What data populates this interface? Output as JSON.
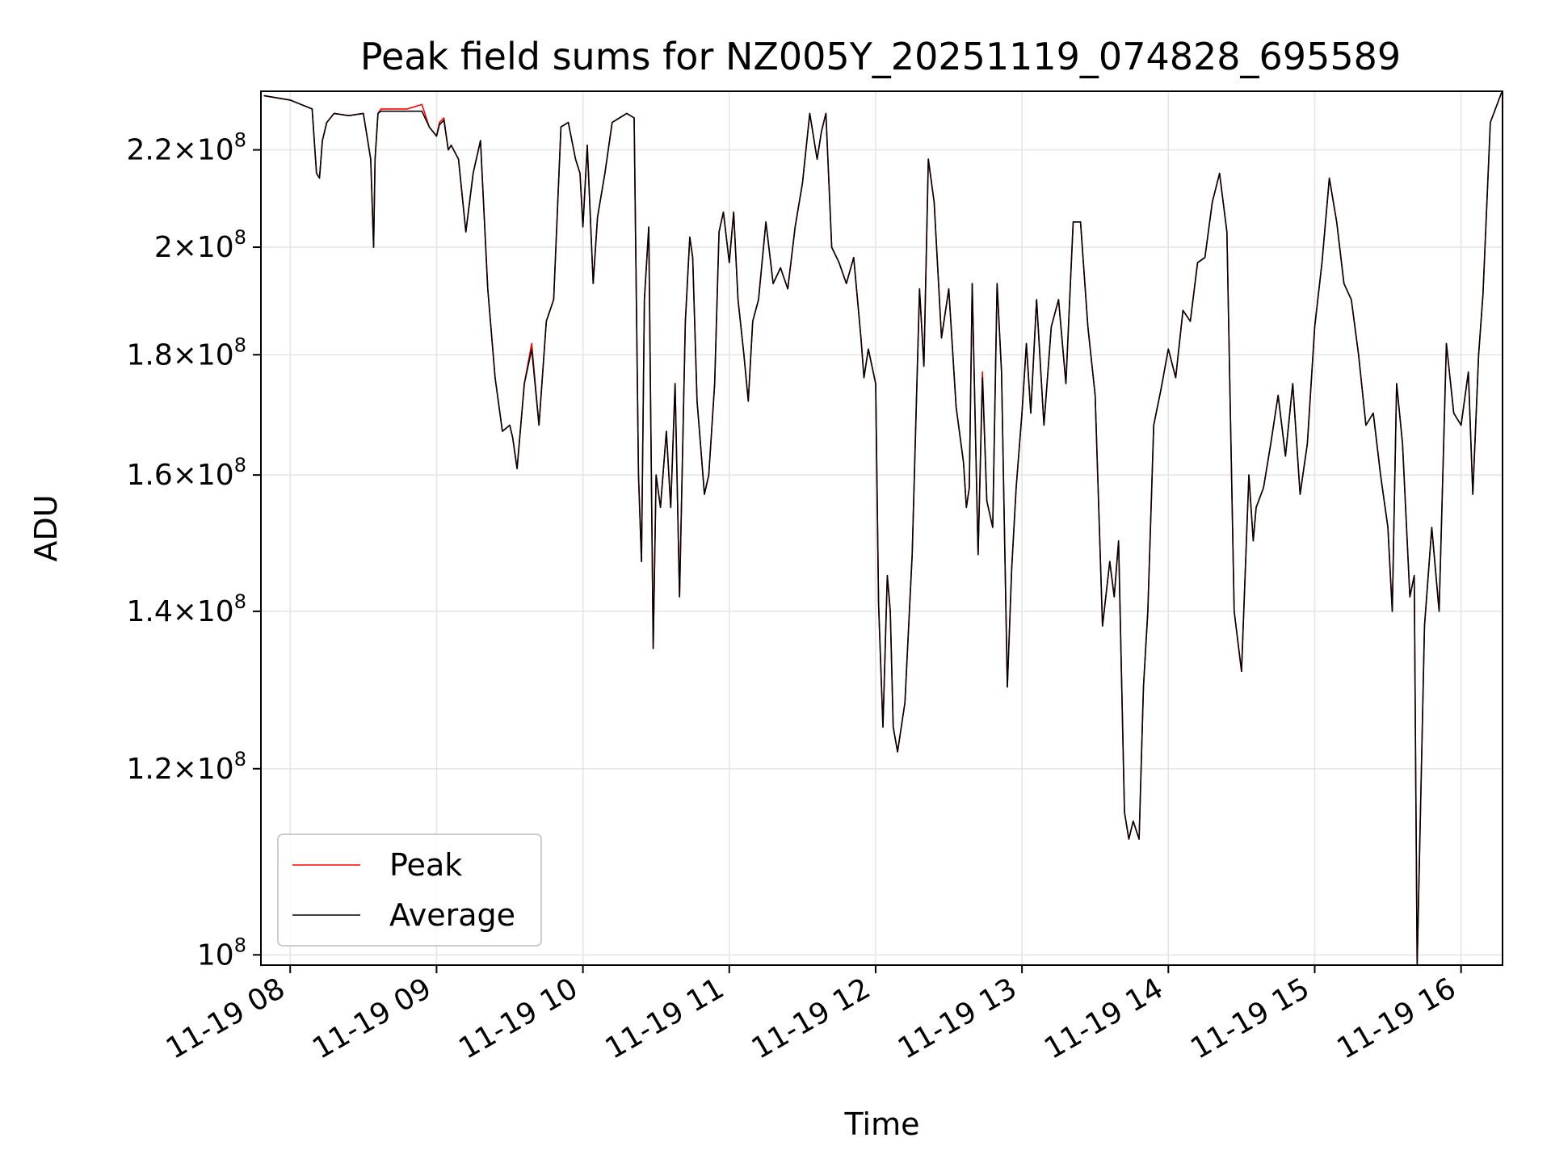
{
  "chart_data": {
    "type": "line",
    "title": "Peak field sums for NZ005Y_20251119_074828_695589",
    "xlabel": "Time",
    "ylabel": "ADU",
    "x_unit": "hours (clock time on 2025-11-19)",
    "xlim": [
      "11-19 07:48",
      "11-19 16:17"
    ],
    "ylim": [
      99000000,
      233000000
    ],
    "yscale": "log",
    "grid": true,
    "legend": "lower-left",
    "xticks": [
      {
        "v": 8,
        "label": "11-19 08"
      },
      {
        "v": 9,
        "label": "11-19 09"
      },
      {
        "v": 10,
        "label": "11-19 10"
      },
      {
        "v": 11,
        "label": "11-19 11"
      },
      {
        "v": 12,
        "label": "11-19 12"
      },
      {
        "v": 13,
        "label": "11-19 13"
      },
      {
        "v": 14,
        "label": "11-19 14"
      },
      {
        "v": 15,
        "label": "11-19 15"
      },
      {
        "v": 16,
        "label": "11-19 16"
      }
    ],
    "yticks": [
      {
        "v": 100000000,
        "mant": "",
        "exp": "8"
      },
      {
        "v": 120000000,
        "mant": "1.2",
        "exp": "8"
      },
      {
        "v": 140000000,
        "mant": "1.4",
        "exp": "8"
      },
      {
        "v": 160000000,
        "mant": "1.6",
        "exp": "8"
      },
      {
        "v": 180000000,
        "mant": "1.8",
        "exp": "8"
      },
      {
        "v": 200000000,
        "mant": "2",
        "exp": "8"
      },
      {
        "v": 220000000,
        "mant": "2.2",
        "exp": "8"
      }
    ],
    "series": [
      {
        "name": "Peak",
        "color": "#ff0000",
        "x": [
          7.82,
          8.0,
          8.15,
          8.18,
          8.2,
          8.22,
          8.25,
          8.3,
          8.4,
          8.5,
          8.55,
          8.57,
          8.58,
          8.6,
          8.62,
          8.65,
          8.7,
          8.8,
          8.9,
          8.95,
          9.0,
          9.02,
          9.05,
          9.08,
          9.1,
          9.15,
          9.2,
          9.25,
          9.3,
          9.35,
          9.4,
          9.45,
          9.5,
          9.52,
          9.55,
          9.6,
          9.65,
          9.7,
          9.75,
          9.8,
          9.85,
          9.9,
          9.95,
          9.98,
          10.0,
          10.03,
          10.07,
          10.1,
          10.15,
          10.2,
          10.3,
          10.35,
          10.38,
          10.4,
          10.42,
          10.45,
          10.48,
          10.5,
          10.53,
          10.57,
          10.6,
          10.63,
          10.66,
          10.7,
          10.73,
          10.75,
          10.78,
          10.8,
          10.83,
          10.86,
          10.9,
          10.93,
          10.96,
          11.0,
          11.03,
          11.06,
          11.1,
          11.13,
          11.16,
          11.2,
          11.25,
          11.3,
          11.35,
          11.4,
          11.45,
          11.5,
          11.55,
          11.6,
          11.63,
          11.66,
          11.7,
          11.75,
          11.8,
          11.85,
          11.9,
          11.92,
          11.95,
          12.0,
          12.02,
          12.05,
          12.08,
          12.1,
          12.12,
          12.15,
          12.2,
          12.25,
          12.3,
          12.33,
          12.36,
          12.4,
          12.45,
          12.5,
          12.55,
          12.6,
          12.62,
          12.64,
          12.66,
          12.7,
          12.73,
          12.76,
          12.8,
          12.83,
          12.86,
          12.9,
          12.93,
          12.96,
          13.0,
          13.03,
          13.06,
          13.1,
          13.15,
          13.2,
          13.25,
          13.3,
          13.35,
          13.4,
          13.45,
          13.5,
          13.55,
          13.6,
          13.63,
          13.66,
          13.7,
          13.73,
          13.76,
          13.8,
          13.83,
          13.86,
          13.9,
          13.95,
          14.0,
          14.05,
          14.1,
          14.15,
          14.2,
          14.25,
          14.3,
          14.35,
          14.4,
          14.45,
          14.5,
          14.55,
          14.58,
          14.6,
          14.65,
          14.7,
          14.75,
          14.8,
          14.85,
          14.9,
          14.95,
          15.0,
          15.05,
          15.1,
          15.15,
          15.2,
          15.25,
          15.3,
          15.35,
          15.4,
          15.45,
          15.5,
          15.53,
          15.56,
          15.6,
          15.65,
          15.68,
          15.7,
          15.75,
          15.8,
          15.85,
          15.9,
          15.95,
          16.0,
          16.05,
          16.08,
          16.12,
          16.15,
          16.2,
          16.28
        ],
        "values": [
          232000000,
          231000000,
          229000000,
          215000000,
          214000000,
          222000000,
          226000000,
          228000000,
          227500000,
          228000000,
          218000000,
          200000000,
          218000000,
          228000000,
          229000000,
          229000000,
          229000000,
          229000000,
          230000000,
          225000000,
          223000000,
          226000000,
          227000000,
          220000000,
          221000000,
          218000000,
          203000000,
          215000000,
          222000000,
          192000000,
          176000000,
          167000000,
          168000000,
          166000000,
          161000000,
          175000000,
          182000000,
          168000000,
          186000000,
          190000000,
          225000000,
          226000000,
          218000000,
          215000000,
          204000000,
          221000000,
          193000000,
          206000000,
          215000000,
          226000000,
          228000000,
          227000000,
          160000000,
          147000000,
          190000000,
          204000000,
          135000000,
          160000000,
          155000000,
          167000000,
          155000000,
          175000000,
          142000000,
          186000000,
          202000000,
          198000000,
          172000000,
          166000000,
          157000000,
          160000000,
          175000000,
          203000000,
          207000000,
          197000000,
          207000000,
          190000000,
          180000000,
          172000000,
          186000000,
          190000000,
          205000000,
          193000000,
          196000000,
          192000000,
          204000000,
          213000000,
          228000000,
          218000000,
          224000000,
          228000000,
          200000000,
          197000000,
          193000000,
          198000000,
          183000000,
          176000000,
          181000000,
          175000000,
          141000000,
          125000000,
          145000000,
          140000000,
          125000000,
          122000000,
          128000000,
          148000000,
          192000000,
          178000000,
          218000000,
          209000000,
          183000000,
          192000000,
          171000000,
          162000000,
          155000000,
          158000000,
          193000000,
          148000000,
          177000000,
          156000000,
          152000000,
          193000000,
          177000000,
          130000000,
          146000000,
          158000000,
          170000000,
          182000000,
          170000000,
          190000000,
          168000000,
          185000000,
          190000000,
          175000000,
          205000000,
          205000000,
          185000000,
          173000000,
          138000000,
          147000000,
          142000000,
          150000000,
          115000000,
          112000000,
          114000000,
          112000000,
          130000000,
          140000000,
          168000000,
          174000000,
          181000000,
          176000000,
          188000000,
          186000000,
          197000000,
          198000000,
          209000000,
          215000000,
          203000000,
          140000000,
          132000000,
          160000000,
          150000000,
          155000000,
          158000000,
          165000000,
          173000000,
          163000000,
          175000000,
          157000000,
          165000000,
          185000000,
          197000000,
          214000000,
          205000000,
          193000000,
          190000000,
          180000000,
          168000000,
          170000000,
          160000000,
          152000000,
          140000000,
          175000000,
          165000000,
          142000000,
          145000000,
          99000000,
          138000000,
          152000000,
          140000000,
          182000000,
          170000000,
          168000000,
          177000000,
          157000000,
          180000000,
          191000000,
          226000000,
          233000000
        ]
      },
      {
        "name": "Average",
        "color": "#000000",
        "x": [
          7.82,
          8.0,
          8.15,
          8.18,
          8.2,
          8.22,
          8.25,
          8.3,
          8.4,
          8.5,
          8.55,
          8.57,
          8.58,
          8.6,
          8.62,
          8.65,
          8.7,
          8.8,
          8.9,
          8.95,
          9.0,
          9.02,
          9.05,
          9.08,
          9.1,
          9.15,
          9.2,
          9.25,
          9.3,
          9.35,
          9.4,
          9.45,
          9.5,
          9.52,
          9.55,
          9.6,
          9.65,
          9.7,
          9.75,
          9.8,
          9.85,
          9.9,
          9.95,
          9.98,
          10.0,
          10.03,
          10.07,
          10.1,
          10.15,
          10.2,
          10.3,
          10.35,
          10.38,
          10.4,
          10.42,
          10.45,
          10.48,
          10.5,
          10.53,
          10.57,
          10.6,
          10.63,
          10.66,
          10.7,
          10.73,
          10.75,
          10.78,
          10.8,
          10.83,
          10.86,
          10.9,
          10.93,
          10.96,
          11.0,
          11.03,
          11.06,
          11.1,
          11.13,
          11.16,
          11.2,
          11.25,
          11.3,
          11.35,
          11.4,
          11.45,
          11.5,
          11.55,
          11.6,
          11.63,
          11.66,
          11.7,
          11.75,
          11.8,
          11.85,
          11.9,
          11.92,
          11.95,
          12.0,
          12.02,
          12.05,
          12.08,
          12.1,
          12.12,
          12.15,
          12.2,
          12.25,
          12.3,
          12.33,
          12.36,
          12.4,
          12.45,
          12.5,
          12.55,
          12.6,
          12.62,
          12.64,
          12.66,
          12.7,
          12.73,
          12.76,
          12.8,
          12.83,
          12.86,
          12.9,
          12.93,
          12.96,
          13.0,
          13.03,
          13.06,
          13.1,
          13.15,
          13.2,
          13.25,
          13.3,
          13.35,
          13.4,
          13.45,
          13.5,
          13.55,
          13.6,
          13.63,
          13.66,
          13.7,
          13.73,
          13.76,
          13.8,
          13.83,
          13.86,
          13.9,
          13.95,
          14.0,
          14.05,
          14.1,
          14.15,
          14.2,
          14.25,
          14.3,
          14.35,
          14.4,
          14.45,
          14.5,
          14.55,
          14.58,
          14.6,
          14.65,
          14.7,
          14.75,
          14.8,
          14.85,
          14.9,
          14.95,
          15.0,
          15.05,
          15.1,
          15.15,
          15.2,
          15.25,
          15.3,
          15.35,
          15.4,
          15.45,
          15.5,
          15.53,
          15.56,
          15.6,
          15.65,
          15.68,
          15.7,
          15.75,
          15.8,
          15.85,
          15.9,
          15.95,
          16.0,
          16.05,
          16.08,
          16.12,
          16.15,
          16.2,
          16.28
        ],
        "values": [
          232000000,
          231000000,
          229000000,
          215000000,
          214000000,
          222000000,
          226000000,
          228000000,
          227500000,
          228000000,
          218000000,
          200000000,
          218000000,
          228000000,
          228500000,
          228500000,
          228500000,
          228500000,
          228500000,
          225000000,
          223000000,
          225500000,
          226500000,
          220000000,
          221000000,
          218000000,
          203000000,
          215000000,
          222000000,
          192000000,
          176000000,
          167000000,
          168000000,
          166000000,
          161000000,
          175000000,
          181000000,
          168000000,
          186000000,
          190000000,
          225000000,
          226000000,
          218000000,
          215000000,
          204000000,
          221000000,
          193000000,
          206000000,
          215000000,
          226000000,
          228000000,
          227000000,
          160000000,
          147000000,
          190000000,
          204000000,
          135000000,
          160000000,
          155000000,
          167000000,
          155000000,
          175000000,
          142000000,
          186000000,
          202000000,
          198000000,
          172000000,
          166000000,
          157000000,
          160000000,
          175000000,
          203000000,
          207000000,
          197000000,
          207000000,
          190000000,
          180000000,
          172000000,
          186000000,
          190000000,
          205000000,
          193000000,
          196000000,
          192000000,
          204000000,
          213000000,
          228000000,
          218000000,
          224000000,
          228000000,
          200000000,
          197000000,
          193000000,
          198000000,
          183000000,
          176000000,
          181000000,
          175000000,
          141000000,
          125000000,
          145000000,
          140000000,
          125000000,
          122000000,
          128000000,
          148000000,
          192000000,
          178000000,
          218000000,
          209000000,
          183000000,
          192000000,
          171000000,
          162000000,
          155000000,
          158000000,
          193000000,
          148000000,
          176000000,
          156000000,
          152000000,
          193000000,
          177000000,
          130000000,
          146000000,
          158000000,
          170000000,
          182000000,
          170000000,
          190000000,
          168000000,
          185000000,
          190000000,
          175000000,
          205000000,
          205000000,
          185000000,
          173000000,
          138000000,
          147000000,
          142000000,
          150000000,
          115000000,
          112000000,
          114000000,
          112000000,
          130000000,
          140000000,
          168000000,
          174000000,
          181000000,
          176000000,
          188000000,
          186000000,
          197000000,
          198000000,
          209000000,
          215000000,
          203000000,
          140000000,
          132000000,
          160000000,
          150000000,
          155000000,
          158000000,
          165000000,
          173000000,
          163000000,
          175000000,
          157000000,
          165000000,
          185000000,
          197000000,
          214000000,
          205000000,
          193000000,
          190000000,
          180000000,
          168000000,
          170000000,
          160000000,
          152000000,
          140000000,
          175000000,
          165000000,
          142000000,
          145000000,
          99000000,
          138000000,
          152000000,
          140000000,
          182000000,
          170000000,
          168000000,
          177000000,
          157000000,
          180000000,
          191000000,
          226000000,
          233000000
        ]
      }
    ]
  }
}
